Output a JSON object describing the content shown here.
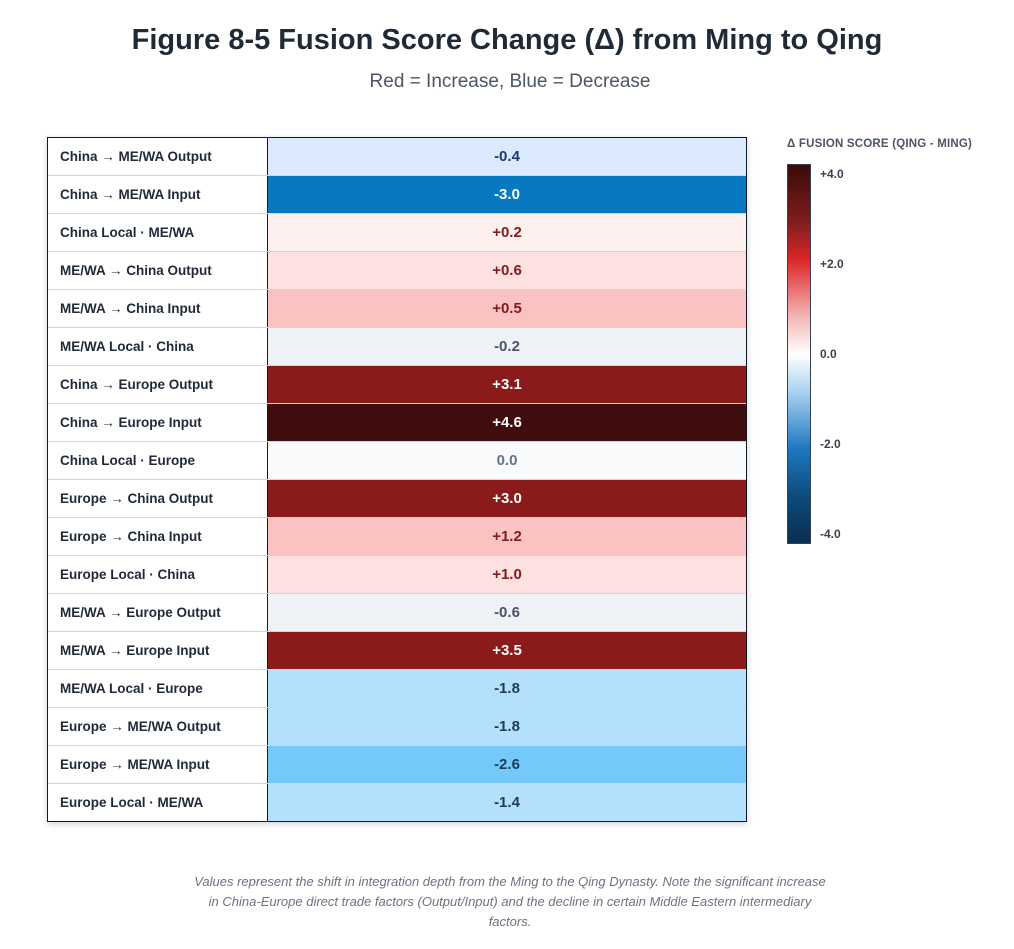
{
  "title": "Figure 8-5 Fusion Score Change (Δ) from Ming to Qing",
  "subtitle": "Red = Increase, Blue = Decrease",
  "footnote": "Values represent the shift in integration depth from the Ming to the Qing Dynasty. Note the significant increase in China-Europe direct trade factors (Output/Input) and the decline in certain Middle Eastern intermediary factors.",
  "legend": {
    "title": "Δ FUSION SCORE (QING - MING)",
    "ticks": [
      "+4.0",
      "+2.0",
      "0.0",
      "-2.0",
      "-4.0"
    ]
  },
  "chart_data": {
    "type": "heatmap",
    "title": "Figure 8-5 Fusion Score Change (Δ) from Ming to Qing",
    "rows": [
      {
        "label": "China → ME/WA Output",
        "value": -0.4,
        "display": "-0.4"
      },
      {
        "label": "China → ME/WA Input",
        "value": -3.0,
        "display": "-3.0"
      },
      {
        "label": "China Local · ME/WA",
        "value": 0.2,
        "display": "+0.2"
      },
      {
        "label": "ME/WA → China Output",
        "value": 0.6,
        "display": "+0.6"
      },
      {
        "label": "ME/WA → China Input",
        "value": 0.5,
        "display": "+0.5"
      },
      {
        "label": "ME/WA Local · China",
        "value": -0.2,
        "display": "-0.2"
      },
      {
        "label": "China → Europe Output",
        "value": 3.1,
        "display": "+3.1"
      },
      {
        "label": "China → Europe Input",
        "value": 4.6,
        "display": "+4.6"
      },
      {
        "label": "China Local · Europe",
        "value": 0.0,
        "display": "0.0"
      },
      {
        "label": "Europe → China Output",
        "value": 3.0,
        "display": "+3.0"
      },
      {
        "label": "Europe → China Input",
        "value": 1.2,
        "display": "+1.2"
      },
      {
        "label": "Europe Local · China",
        "value": 1.0,
        "display": "+1.0"
      },
      {
        "label": "ME/WA → Europe Output",
        "value": -0.6,
        "display": "-0.6"
      },
      {
        "label": "ME/WA → Europe Input",
        "value": 3.5,
        "display": "+3.5"
      },
      {
        "label": "ME/WA Local · Europe",
        "value": -1.8,
        "display": "-1.8"
      },
      {
        "label": "Europe → ME/WA Output",
        "value": -1.8,
        "display": "-1.8"
      },
      {
        "label": "Europe → ME/WA Input",
        "value": -2.6,
        "display": "-2.6"
      },
      {
        "label": "Europe Local · ME/WA",
        "value": -1.4,
        "display": "-1.4"
      }
    ],
    "color_range": [
      -4.0,
      4.0
    ],
    "colors": {
      "deep_red": "#3f0d0d",
      "red": "#8b1a1a",
      "light_red": "#fbc2c2",
      "pale_red": "#fde0e0",
      "faint_red": "#fff0f0",
      "neutral": "#f8fafc",
      "gray": "#eef2f7",
      "pale_blue": "#dbeafe",
      "light_blue": "#b3e0fb",
      "mid_blue": "#74c9f8",
      "blue": "#0878c0"
    }
  }
}
